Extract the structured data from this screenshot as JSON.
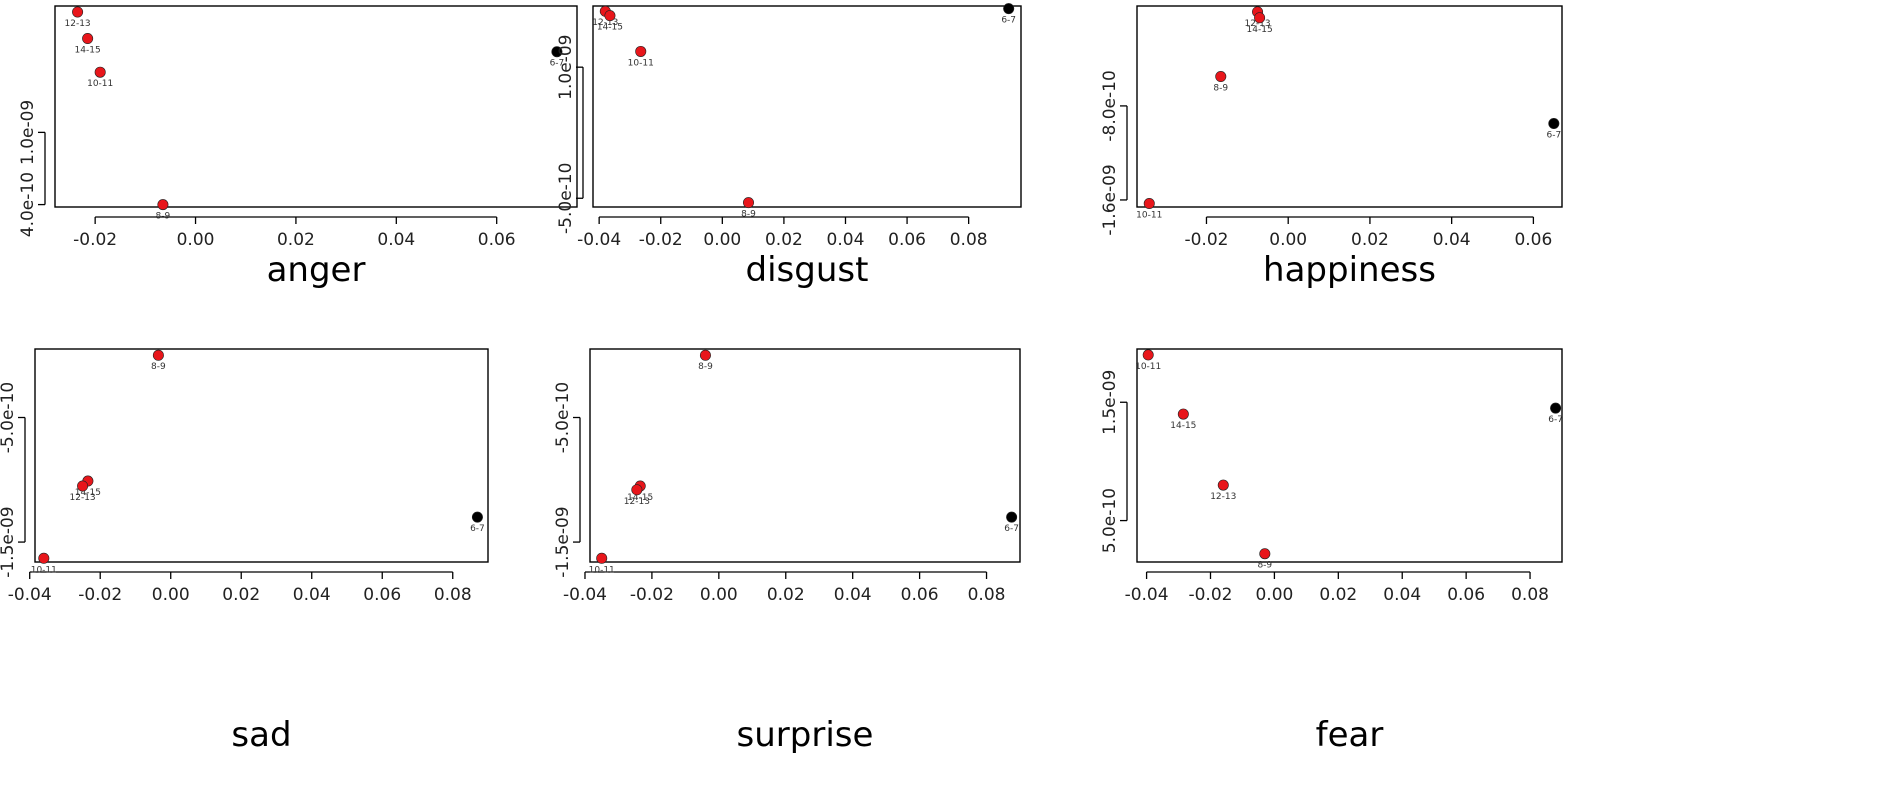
{
  "chart_data": [
    {
      "type": "scatter",
      "title": "anger",
      "xlim": [
        -0.028,
        0.076
      ],
      "ylim": [
        3.8e-10,
        2.05e-09
      ],
      "x_ticks": [
        -0.02,
        0.0,
        0.02,
        0.04,
        0.06
      ],
      "x_tick_labels": [
        "-0.02",
        "0.00",
        "0.02",
        "0.04",
        "0.06"
      ],
      "y_ticks": [
        4e-10,
        1e-09
      ],
      "y_tick_labels": [
        "4.0e-10",
        "1.0e-09"
      ],
      "points": [
        {
          "label": "12-13",
          "x": -0.0235,
          "y": 2e-09,
          "color": "#e8161b"
        },
        {
          "label": "14-15",
          "x": -0.0215,
          "y": 1.78e-09,
          "color": "#e8161b"
        },
        {
          "label": "10-11",
          "x": -0.019,
          "y": 1.5e-09,
          "color": "#e8161b"
        },
        {
          "label": "8-9",
          "x": -0.0065,
          "y": 4e-10,
          "color": "#e8161b"
        },
        {
          "label": "6-7",
          "x": 0.072,
          "y": 1.67e-09,
          "color": "#000000"
        }
      ]
    },
    {
      "type": "scatter",
      "title": "disgust",
      "xlim": [
        -0.042,
        0.097
      ],
      "ylim": [
        -6e-10,
        1.7e-09
      ],
      "x_ticks": [
        -0.04,
        -0.02,
        0.0,
        0.02,
        0.04,
        0.06,
        0.08
      ],
      "x_tick_labels": [
        "-0.04",
        "-0.02",
        "0.00",
        "0.02",
        "0.04",
        "0.06",
        "0.08"
      ],
      "y_ticks": [
        -5e-10,
        1e-09
      ],
      "y_tick_labels": [
        "-5.0e-10",
        "1.0e-09"
      ],
      "points": [
        {
          "label": "12-13",
          "x": -0.038,
          "y": 1.64e-09,
          "color": "#e8161b"
        },
        {
          "label": "14-15",
          "x": -0.0365,
          "y": 1.59e-09,
          "color": "#e8161b"
        },
        {
          "label": "10-11",
          "x": -0.0265,
          "y": 1.18e-09,
          "color": "#e8161b"
        },
        {
          "label": "8-9",
          "x": 0.0085,
          "y": -5.5e-10,
          "color": "#e8161b"
        },
        {
          "label": "6-7",
          "x": 0.093,
          "y": 1.67e-09,
          "color": "#000000"
        }
      ]
    },
    {
      "type": "scatter",
      "title": "happiness",
      "xlim": [
        -0.037,
        0.067
      ],
      "ylim": [
        -1.66e-09,
        5e-11
      ],
      "x_ticks": [
        -0.02,
        0.0,
        0.02,
        0.04,
        0.06
      ],
      "x_tick_labels": [
        "-0.02",
        "0.00",
        "0.02",
        "0.04",
        "0.06"
      ],
      "y_ticks": [
        -1.6e-09,
        -8e-10
      ],
      "y_tick_labels": [
        "-1.6e-09",
        "-8.0e-10"
      ],
      "points": [
        {
          "label": "12-13",
          "x": -0.0075,
          "y": 0.0,
          "color": "#e8161b"
        },
        {
          "label": "14-15",
          "x": -0.007,
          "y": -5e-11,
          "color": "#e8161b"
        },
        {
          "label": "8-9",
          "x": -0.0165,
          "y": -5.5e-10,
          "color": "#e8161b"
        },
        {
          "label": "10-11",
          "x": -0.034,
          "y": -1.63e-09,
          "color": "#e8161b"
        },
        {
          "label": "6-7",
          "x": 0.065,
          "y": -9.5e-10,
          "color": "#000000"
        }
      ]
    },
    {
      "type": "scatter",
      "title": "sad",
      "xlim": [
        -0.0385,
        0.09
      ],
      "ylim": [
        -1.66e-09,
        5e-11
      ],
      "x_ticks": [
        -0.04,
        -0.02,
        0.0,
        0.02,
        0.04,
        0.06,
        0.08
      ],
      "x_tick_labels": [
        "-0.04",
        "-0.02",
        "0.00",
        "0.02",
        "0.04",
        "0.06",
        "0.08"
      ],
      "y_ticks": [
        -1.5e-09,
        -5e-10
      ],
      "y_tick_labels": [
        "-1.5e-09",
        "-5.0e-10"
      ],
      "points": [
        {
          "label": "8-9",
          "x": -0.0035,
          "y": 0.0,
          "color": "#e8161b"
        },
        {
          "label": "14-15",
          "x": -0.0235,
          "y": -1.01e-09,
          "color": "#e8161b"
        },
        {
          "label": "12-13",
          "x": -0.025,
          "y": -1.05e-09,
          "color": "#e8161b"
        },
        {
          "label": "10-11",
          "x": -0.036,
          "y": -1.63e-09,
          "color": "#e8161b"
        },
        {
          "label": "6-7",
          "x": 0.087,
          "y": -1.3e-09,
          "color": "#000000"
        }
      ]
    },
    {
      "type": "scatter",
      "title": "surprise",
      "xlim": [
        -0.0385,
        0.09
      ],
      "ylim": [
        -1.66e-09,
        5e-11
      ],
      "x_ticks": [
        -0.04,
        -0.02,
        0.0,
        0.02,
        0.04,
        0.06,
        0.08
      ],
      "x_tick_labels": [
        "-0.04",
        "-0.02",
        "0.00",
        "0.02",
        "0.04",
        "0.06",
        "0.08"
      ],
      "y_ticks": [
        -1.5e-09,
        -5e-10
      ],
      "y_tick_labels": [
        "-1.5e-09",
        "-5.0e-10"
      ],
      "points": [
        {
          "label": "8-9",
          "x": -0.004,
          "y": 0.0,
          "color": "#e8161b"
        },
        {
          "label": "14-15",
          "x": -0.0235,
          "y": -1.05e-09,
          "color": "#e8161b"
        },
        {
          "label": "12-13",
          "x": -0.0245,
          "y": -1.08e-09,
          "color": "#e8161b"
        },
        {
          "label": "10-11",
          "x": -0.035,
          "y": -1.63e-09,
          "color": "#e8161b"
        },
        {
          "label": "6-7",
          "x": 0.0875,
          "y": -1.3e-09,
          "color": "#000000"
        }
      ]
    },
    {
      "type": "scatter",
      "title": "fear",
      "xlim": [
        -0.043,
        0.09
      ],
      "ylim": [
        1.5e-10,
        1.95e-09
      ],
      "x_ticks": [
        -0.04,
        -0.02,
        0.0,
        0.02,
        0.04,
        0.06,
        0.08
      ],
      "x_tick_labels": [
        "-0.04",
        "-0.02",
        "0.00",
        "0.02",
        "0.04",
        "0.06",
        "0.08"
      ],
      "y_ticks": [
        5e-10,
        1.5e-09
      ],
      "y_tick_labels": [
        "5.0e-10",
        "1.5e-09"
      ],
      "points": [
        {
          "label": "10-11",
          "x": -0.0395,
          "y": 1.9e-09,
          "color": "#e8161b"
        },
        {
          "label": "14-15",
          "x": -0.0285,
          "y": 1.4e-09,
          "color": "#e8161b"
        },
        {
          "label": "12-13",
          "x": -0.016,
          "y": 8e-10,
          "color": "#e8161b"
        },
        {
          "label": "8-9",
          "x": -0.003,
          "y": 2.2e-10,
          "color": "#e8161b"
        },
        {
          "label": "6-7",
          "x": 0.088,
          "y": 1.45e-09,
          "color": "#000000"
        }
      ]
    }
  ]
}
